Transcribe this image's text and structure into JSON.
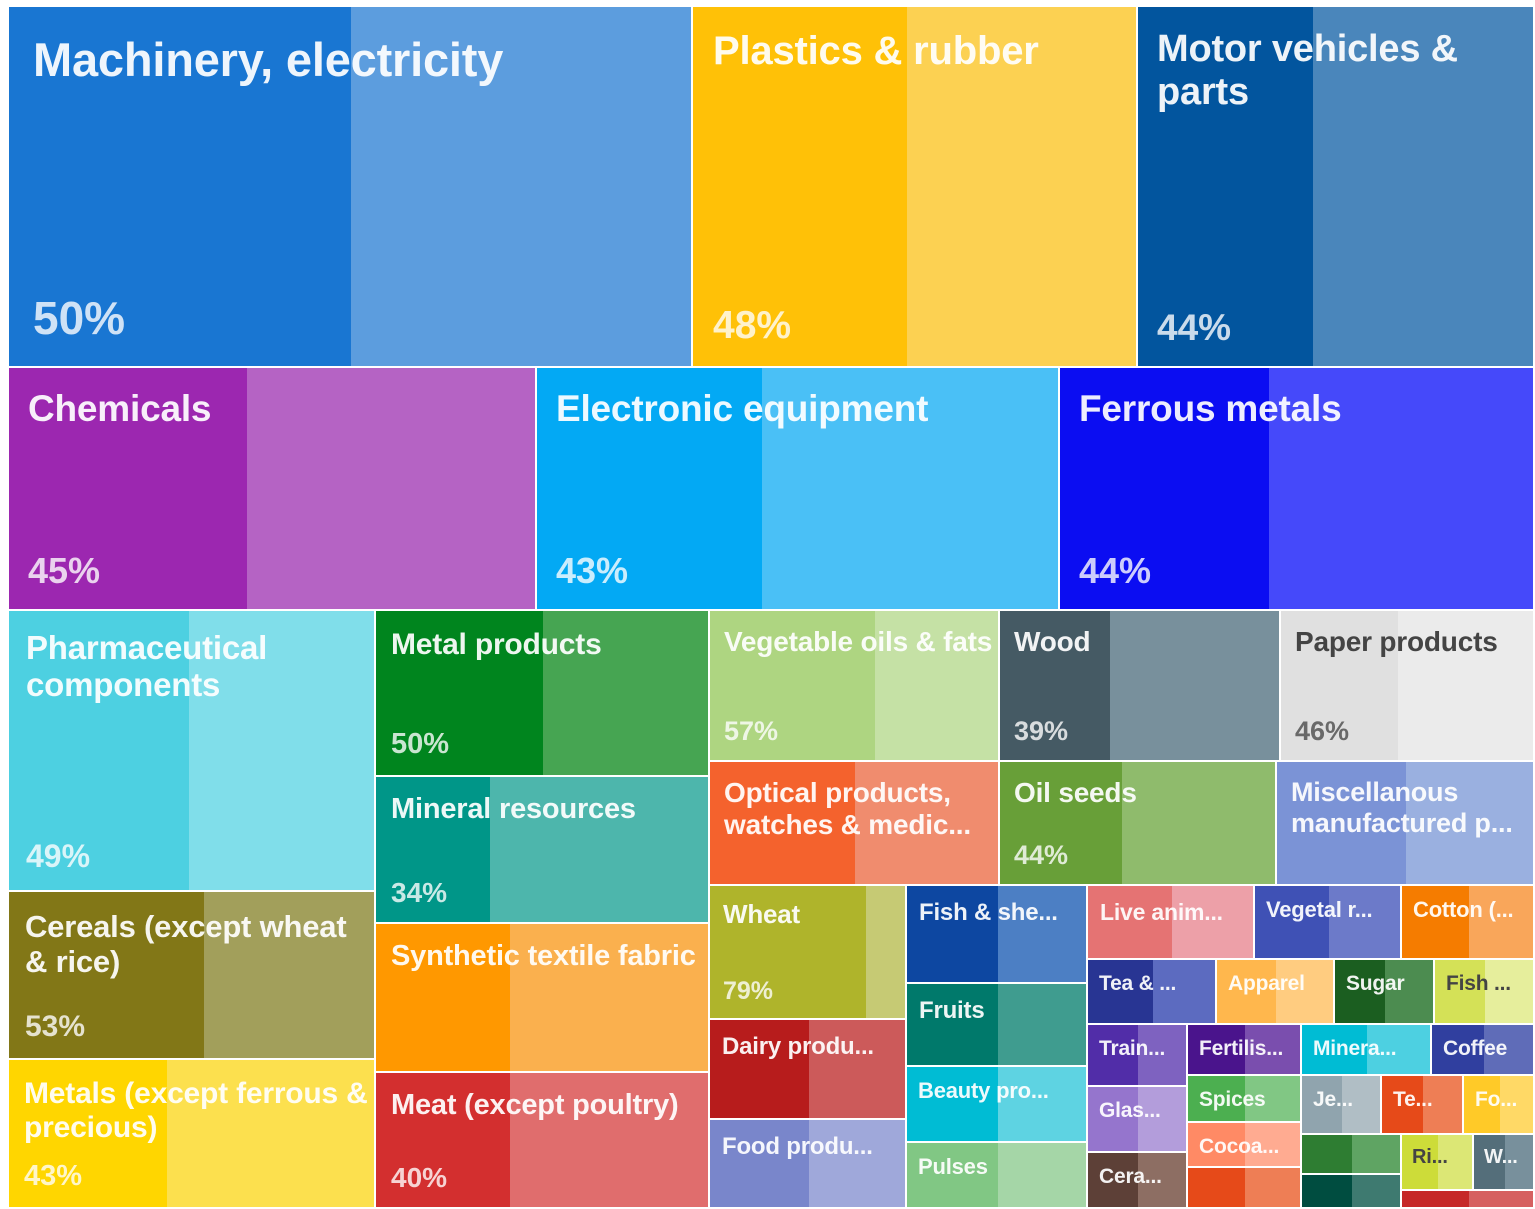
{
  "chart_data": {
    "type": "treemap",
    "title": "",
    "tiles": [
      {
        "label": "Machinery, electricity",
        "value": "50%",
        "color": "#1976D2",
        "color_share": "#5C9DDE"
      },
      {
        "label": "Plastics & rubber",
        "value": "48%",
        "color": "#FFC107",
        "color_share": "#FCD152"
      },
      {
        "label": "Motor vehicles & parts",
        "value": "44%",
        "color": "#02559E",
        "color_share": "#4A86BB"
      },
      {
        "label": "Chemicals",
        "value": "45%",
        "color": "#9C27B0",
        "color_share": "#B563C4"
      },
      {
        "label": "Electronic equipment",
        "value": "43%",
        "color": "#03A9F4",
        "color_share": "#4AC0F6"
      },
      {
        "label": "Ferrous metals",
        "value": "44%",
        "color": "#0B0DF2",
        "color_share": "#4549FA"
      },
      {
        "label": "Pharmaceutical components",
        "value": "49%",
        "color": "#4DD0E1",
        "color_share": "#80DEEA"
      },
      {
        "label": "Metal products",
        "value": "50%",
        "color": "#00851E",
        "color_share": "#46A552"
      },
      {
        "label": "Vegetable oils & fats",
        "value": "57%",
        "color": "#AED581",
        "color_share": "#C5E1A5"
      },
      {
        "label": "Wood",
        "value": "39%",
        "color": "#455A64",
        "color_share": "#78909C"
      },
      {
        "label": "Paper products",
        "value": "46%",
        "color": "#E0E0E0",
        "color_share": "#EBEBEB"
      },
      {
        "label": "Mineral resources",
        "value": "34%",
        "color": "#009688",
        "color_share": "#4DB6AC"
      },
      {
        "label": "Optical products, watches & medic...",
        "value": "",
        "color": "#F4622D",
        "color_share": "#F08C6E"
      },
      {
        "label": "Oil seeds",
        "value": "44%",
        "color": "#689F38",
        "color_share": "#8FBB6C"
      },
      {
        "label": "Miscellanous manufactured p...",
        "value": "",
        "color": "#7B93D6",
        "color_share": "#9AB0E0"
      },
      {
        "label": "Cereals (except wheat & rice)",
        "value": "53%",
        "color": "#827717",
        "color_share": "#A29F5B"
      },
      {
        "label": "Synthetic textile fabric",
        "value": "",
        "color": "#FF9800",
        "color_share": "#FAB04E"
      },
      {
        "label": "Wheat",
        "value": "79%",
        "color": "#AFB42B",
        "color_share": "#C6CA74"
      },
      {
        "label": "Fish & she...",
        "value": "",
        "color": "#0D47A1",
        "color_share": "#4C7FC4"
      },
      {
        "label": "Live anim...",
        "value": "",
        "color": "#E57373",
        "color_share": "#EDA0A8"
      },
      {
        "label": "Vegetal r...",
        "value": "",
        "color": "#3F51B5",
        "color_share": "#6C7AC9"
      },
      {
        "label": "Cotton (...",
        "value": "",
        "color": "#F57C00",
        "color_share": "#F9A65A"
      },
      {
        "label": "Tea & ...",
        "value": "",
        "color": "#283593",
        "color_share": "#5C6BC0"
      },
      {
        "label": "Apparel",
        "value": "",
        "color": "#FFB74D",
        "color_share": "#FFCC80"
      },
      {
        "label": "Sugar",
        "value": "",
        "color": "#1B5E20",
        "color_share": "#4C8C50"
      },
      {
        "label": "Fish ...",
        "value": "",
        "color": "#D4E157",
        "color_share": "#E6EE9C"
      },
      {
        "label": "Fruits",
        "value": "",
        "color": "#00796B",
        "color_share": "#3F9C8F"
      },
      {
        "label": "Dairy produ...",
        "value": "",
        "color": "#B71C1C",
        "color_share": "#CC5A5A"
      },
      {
        "label": "Train...",
        "value": "",
        "color": "#512DA8",
        "color_share": "#7E62C0"
      },
      {
        "label": "Fertilis...",
        "value": "",
        "color": "#4A148C",
        "color_share": "#7A4EAE"
      },
      {
        "label": "Minera...",
        "value": "",
        "color": "#00BCD4",
        "color_share": "#4DD0E1"
      },
      {
        "label": "Coffee",
        "value": "",
        "color": "#303F9F",
        "color_share": "#5F6CB8"
      },
      {
        "label": "Metals (except ferrous & precious)",
        "value": "43%",
        "color": "#FFD600",
        "color_share": "#FCE04E"
      },
      {
        "label": "Meat (except poultry)",
        "value": "40%",
        "color": "#D32F2F",
        "color_share": "#E06D6D"
      },
      {
        "label": "Beauty pro...",
        "value": "",
        "color": "#00BCD4",
        "color_share": "#5ED3E2"
      },
      {
        "label": "Glas...",
        "value": "",
        "color": "#9575CD",
        "color_share": "#B39DDB"
      },
      {
        "label": "Spices",
        "value": "",
        "color": "#4CAF50",
        "color_share": "#81C784"
      },
      {
        "label": "Je...",
        "value": "",
        "color": "#90A4AE",
        "color_share": "#B0BEC5"
      },
      {
        "label": "Te...",
        "value": "",
        "color": "#E64A19",
        "color_share": "#EE7E55"
      },
      {
        "label": "Fo...",
        "value": "",
        "color": "#FFCA28",
        "color_share": "#FFD966"
      },
      {
        "label": "Cocoa...",
        "value": "",
        "color": "#FF8A65",
        "color_share": "#FFAB91"
      },
      {
        "label": "Food produ...",
        "value": "",
        "color": "#7986CB",
        "color_share": "#9FA8DA"
      },
      {
        "label": "Pulses",
        "value": "",
        "color": "#81C784",
        "color_share": "#A5D6A7"
      },
      {
        "label": "Ri...",
        "value": "",
        "color": "#CDDC39",
        "color_share": "#DCE775"
      },
      {
        "label": "W...",
        "value": "",
        "color": "#546E7A",
        "color_share": "#78909C"
      },
      {
        "label": "Cera...",
        "value": "",
        "color": "#5D4037",
        "color_share": "#8D6E63"
      },
      {
        "label": "",
        "value": "",
        "color": "#2E7D32",
        "color_share": "#5FA463"
      },
      {
        "label": "",
        "value": "",
        "color": "#E64A19",
        "color_share": "#EE7E55"
      },
      {
        "label": "",
        "value": "",
        "color": "#C62828",
        "color_share": "#D66060"
      },
      {
        "label": "",
        "value": "",
        "color": "#004D40",
        "color_share": "#3E7A70"
      }
    ]
  }
}
